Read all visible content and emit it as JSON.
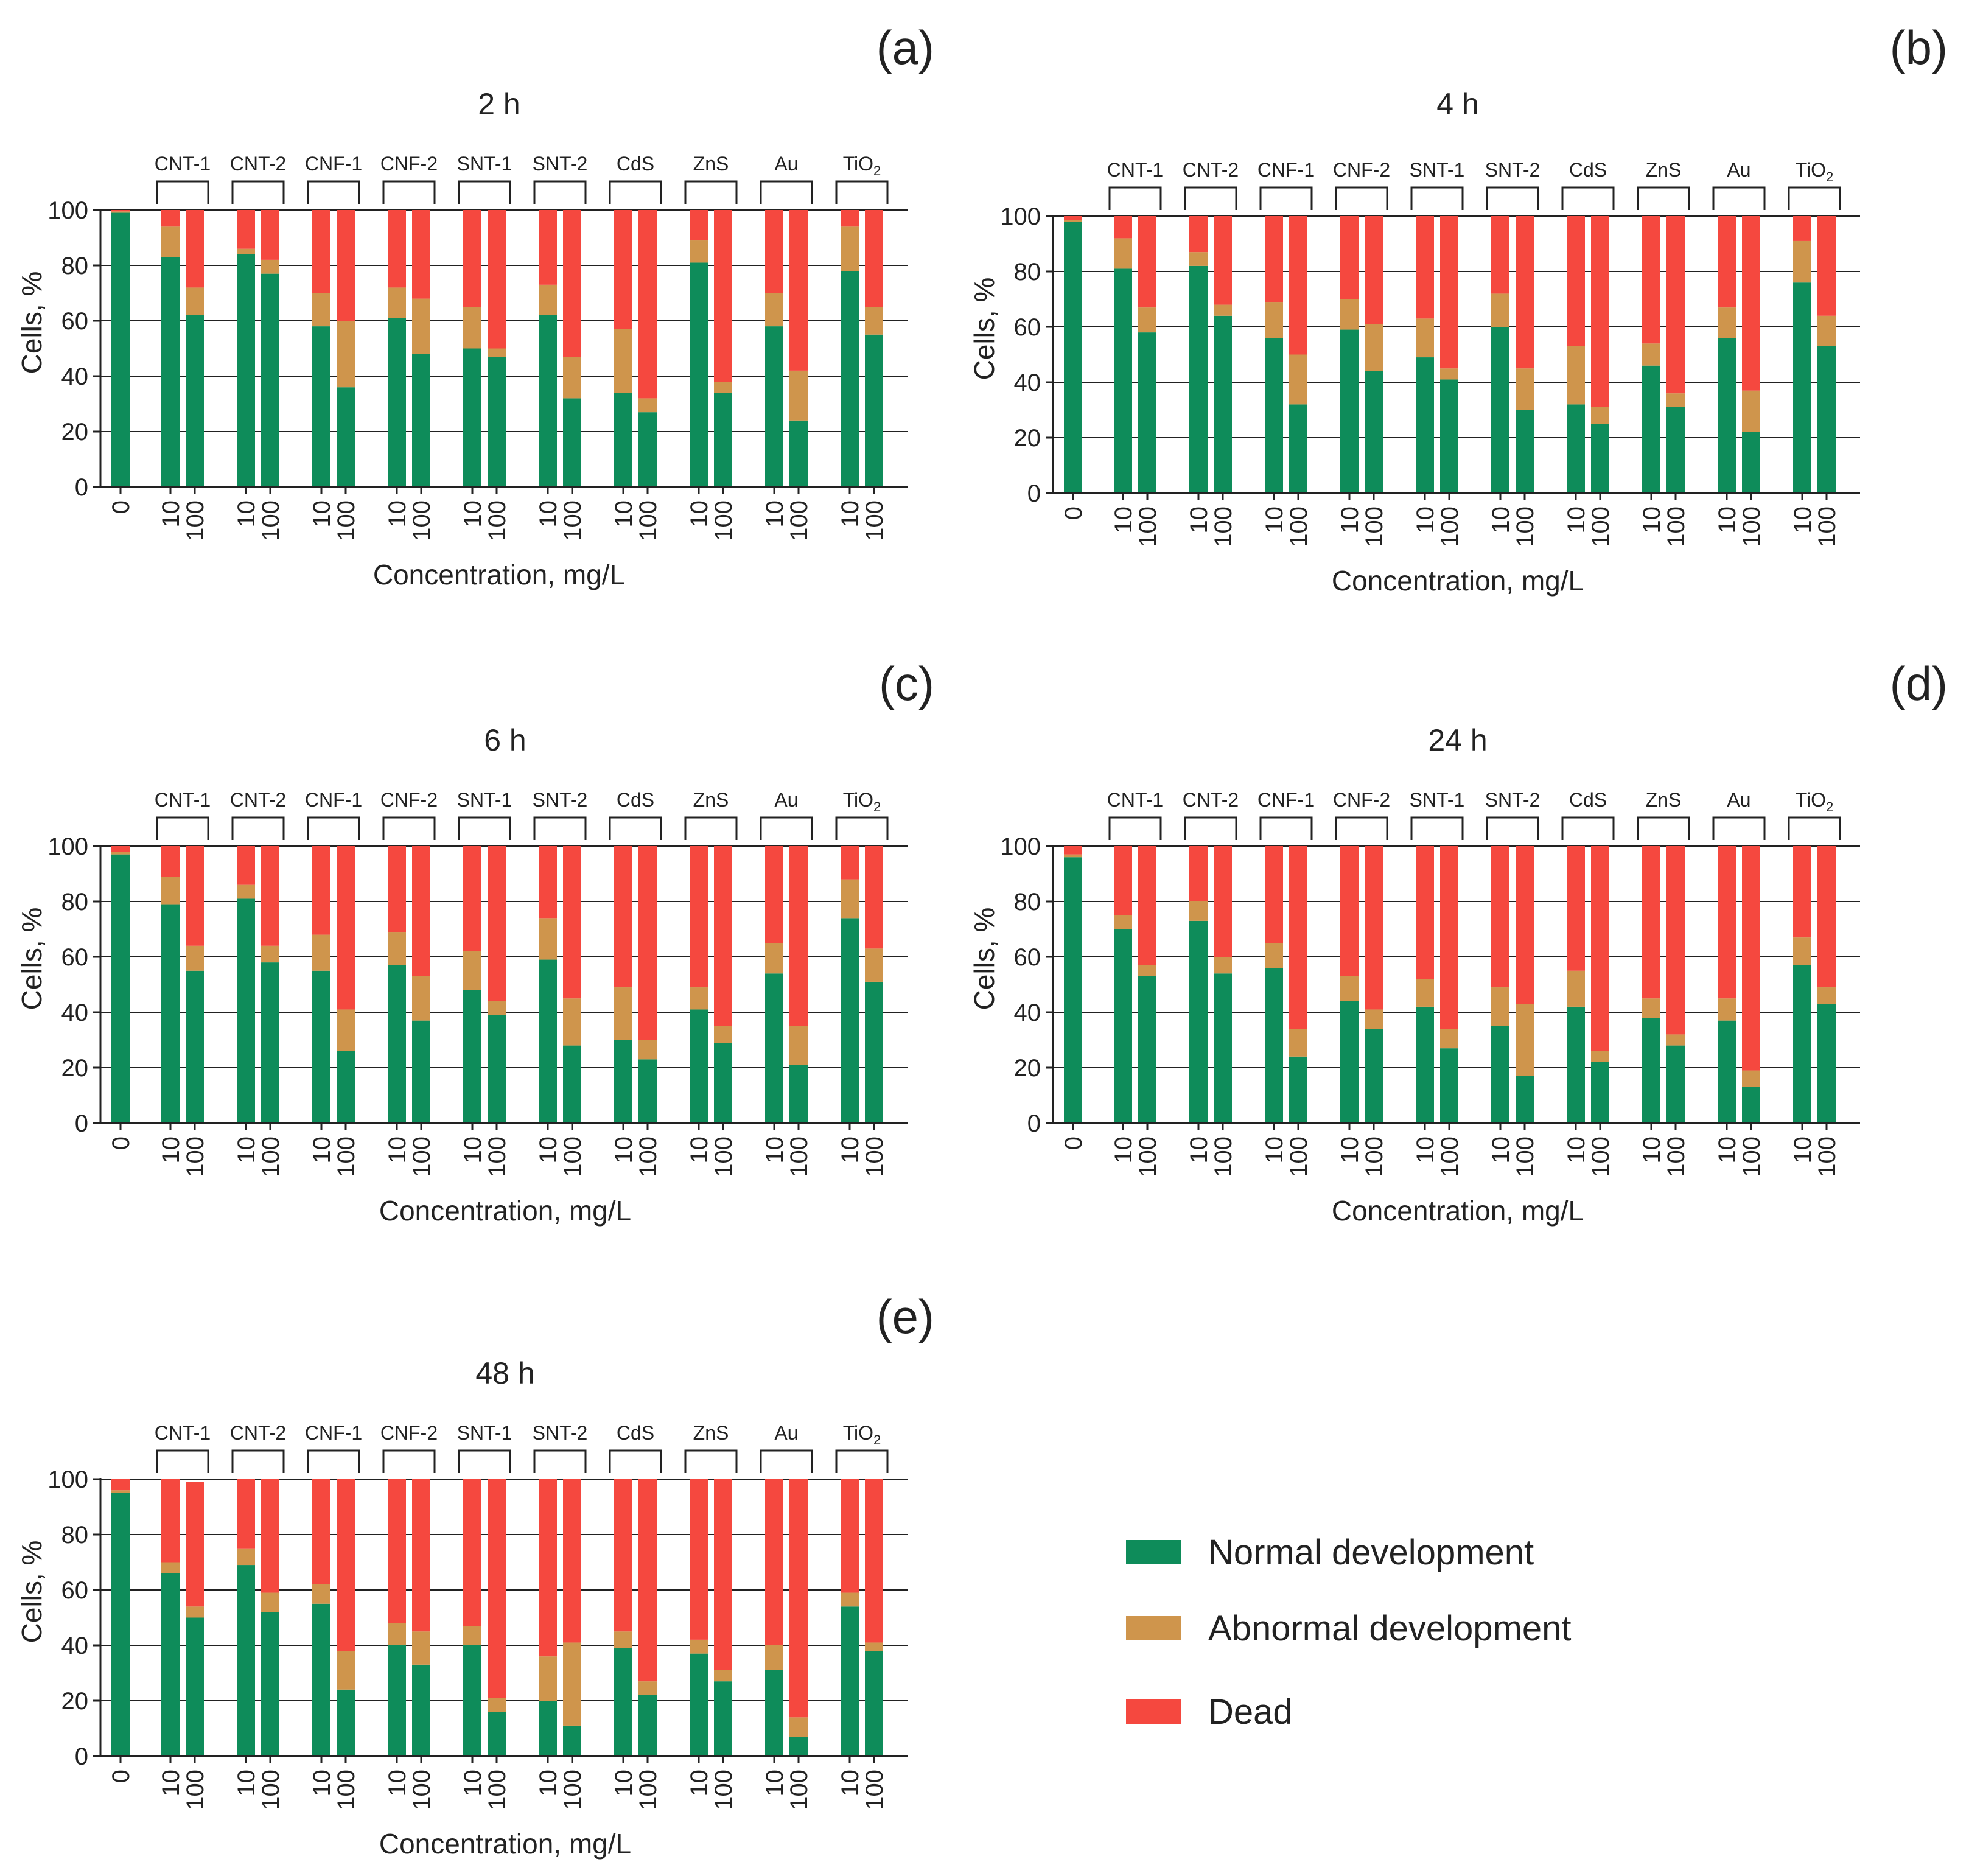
{
  "colors": {
    "normal": "#0e8c5a",
    "abnormal": "#cf954c",
    "dead": "#f5483f"
  },
  "legend": [
    {
      "key": "normal",
      "label": "Normal development"
    },
    {
      "key": "abnormal",
      "label": "Abnormal development"
    },
    {
      "key": "dead",
      "label": "Dead"
    }
  ],
  "chart_data": [
    {
      "type": "bar",
      "stacked": true,
      "panel": "(a)",
      "title": "2 h",
      "xlabel": "Concentration, mg/L",
      "ylabel": "Cells, %",
      "ylim": [
        0,
        100
      ],
      "yticks": [
        "0",
        "20",
        "40",
        "60",
        "80",
        "100"
      ],
      "groups": [
        "CNT-1",
        "CNT-2",
        "CNF-1",
        "CNF-2",
        "SNT-1",
        "SNT-2",
        "CdS",
        "ZnS",
        "Au",
        "TiO2"
      ],
      "categories": [
        "0",
        "10",
        "100"
      ],
      "control": {
        "label": "0",
        "normal": 99,
        "abnormal": 0.5,
        "dead": 0.5
      },
      "bars": [
        [
          {
            "label": "10",
            "normal": 83,
            "abnormal": 11,
            "dead": 6
          },
          {
            "label": "100",
            "normal": 62,
            "abnormal": 10,
            "dead": 28
          }
        ],
        [
          {
            "label": "10",
            "normal": 84,
            "abnormal": 2,
            "dead": 14
          },
          {
            "label": "100",
            "normal": 77,
            "abnormal": 5,
            "dead": 18
          }
        ],
        [
          {
            "label": "10",
            "normal": 58,
            "abnormal": 12,
            "dead": 30
          },
          {
            "label": "100",
            "normal": 36,
            "abnormal": 24,
            "dead": 40
          }
        ],
        [
          {
            "label": "10",
            "normal": 61,
            "abnormal": 11,
            "dead": 28
          },
          {
            "label": "100",
            "normal": 48,
            "abnormal": 20,
            "dead": 32
          }
        ],
        [
          {
            "label": "10",
            "normal": 50,
            "abnormal": 15,
            "dead": 35
          },
          {
            "label": "100",
            "normal": 47,
            "abnormal": 3,
            "dead": 50
          }
        ],
        [
          {
            "label": "10",
            "normal": 62,
            "abnormal": 11,
            "dead": 27
          },
          {
            "label": "100",
            "normal": 32,
            "abnormal": 15,
            "dead": 53
          }
        ],
        [
          {
            "label": "10",
            "normal": 34,
            "abnormal": 23,
            "dead": 43
          },
          {
            "label": "100",
            "normal": 27,
            "abnormal": 5,
            "dead": 68
          }
        ],
        [
          {
            "label": "10",
            "normal": 81,
            "abnormal": 8,
            "dead": 11
          },
          {
            "label": "100",
            "normal": 34,
            "abnormal": 4,
            "dead": 62
          }
        ],
        [
          {
            "label": "10",
            "normal": 58,
            "abnormal": 12,
            "dead": 30
          },
          {
            "label": "100",
            "normal": 24,
            "abnormal": 18,
            "dead": 58
          }
        ],
        [
          {
            "label": "10",
            "normal": 78,
            "abnormal": 16,
            "dead": 6
          },
          {
            "label": "100",
            "normal": 55,
            "abnormal": 10,
            "dead": 35
          }
        ]
      ]
    },
    {
      "type": "bar",
      "stacked": true,
      "panel": "(b)",
      "title": "4 h",
      "xlabel": "Concentration, mg/L",
      "ylabel": "Cells, %",
      "ylim": [
        0,
        100
      ],
      "yticks": [
        "0",
        "20",
        "40",
        "60",
        "80",
        "100"
      ],
      "groups": [
        "CNT-1",
        "CNT-2",
        "CNF-1",
        "CNF-2",
        "SNT-1",
        "SNT-2",
        "CdS",
        "ZnS",
        "Au",
        "TiO2"
      ],
      "categories": [
        "0",
        "10",
        "100"
      ],
      "control": {
        "label": "0",
        "normal": 98,
        "abnormal": 0.5,
        "dead": 1.5
      },
      "bars": [
        [
          {
            "label": "10",
            "normal": 81,
            "abnormal": 11,
            "dead": 8
          },
          {
            "label": "100",
            "normal": 58,
            "abnormal": 9,
            "dead": 33
          }
        ],
        [
          {
            "label": "10",
            "normal": 82,
            "abnormal": 5,
            "dead": 13
          },
          {
            "label": "100",
            "normal": 64,
            "abnormal": 4,
            "dead": 32
          }
        ],
        [
          {
            "label": "10",
            "normal": 56,
            "abnormal": 13,
            "dead": 31
          },
          {
            "label": "100",
            "normal": 32,
            "abnormal": 18,
            "dead": 50
          }
        ],
        [
          {
            "label": "10",
            "normal": 59,
            "abnormal": 11,
            "dead": 30
          },
          {
            "label": "100",
            "normal": 44,
            "abnormal": 17,
            "dead": 39
          }
        ],
        [
          {
            "label": "10",
            "normal": 49,
            "abnormal": 14,
            "dead": 37
          },
          {
            "label": "100",
            "normal": 41,
            "abnormal": 4,
            "dead": 55
          }
        ],
        [
          {
            "label": "10",
            "normal": 60,
            "abnormal": 12,
            "dead": 28
          },
          {
            "label": "100",
            "normal": 30,
            "abnormal": 15,
            "dead": 55
          }
        ],
        [
          {
            "label": "10",
            "normal": 32,
            "abnormal": 21,
            "dead": 47
          },
          {
            "label": "100",
            "normal": 25,
            "abnormal": 6,
            "dead": 69
          }
        ],
        [
          {
            "label": "10",
            "normal": 46,
            "abnormal": 8,
            "dead": 46
          },
          {
            "label": "100",
            "normal": 31,
            "abnormal": 5,
            "dead": 64
          }
        ],
        [
          {
            "label": "10",
            "normal": 56,
            "abnormal": 11,
            "dead": 33
          },
          {
            "label": "100",
            "normal": 22,
            "abnormal": 15,
            "dead": 63
          }
        ],
        [
          {
            "label": "10",
            "normal": 76,
            "abnormal": 15,
            "dead": 9
          },
          {
            "label": "100",
            "normal": 53,
            "abnormal": 11,
            "dead": 36
          }
        ]
      ]
    },
    {
      "type": "bar",
      "stacked": true,
      "panel": "(c)",
      "title": "6 h",
      "xlabel": "Concentration, mg/L",
      "ylabel": "Cells, %",
      "ylim": [
        0,
        100
      ],
      "yticks": [
        "0",
        "20",
        "40",
        "60",
        "80",
        "100"
      ],
      "groups": [
        "CNT-1",
        "CNT-2",
        "CNF-1",
        "CNF-2",
        "SNT-1",
        "SNT-2",
        "CdS",
        "ZnS",
        "Au",
        "TiO2"
      ],
      "categories": [
        "0",
        "10",
        "100"
      ],
      "control": {
        "label": "0",
        "normal": 97,
        "abnormal": 1,
        "dead": 2
      },
      "bars": [
        [
          {
            "label": "10",
            "normal": 79,
            "abnormal": 10,
            "dead": 11
          },
          {
            "label": "100",
            "normal": 55,
            "abnormal": 9,
            "dead": 36
          }
        ],
        [
          {
            "label": "10",
            "normal": 81,
            "abnormal": 5,
            "dead": 14
          },
          {
            "label": "100",
            "normal": 58,
            "abnormal": 6,
            "dead": 36
          }
        ],
        [
          {
            "label": "10",
            "normal": 55,
            "abnormal": 13,
            "dead": 32
          },
          {
            "label": "100",
            "normal": 26,
            "abnormal": 15,
            "dead": 59
          }
        ],
        [
          {
            "label": "10",
            "normal": 57,
            "abnormal": 12,
            "dead": 31
          },
          {
            "label": "100",
            "normal": 37,
            "abnormal": 16,
            "dead": 47
          }
        ],
        [
          {
            "label": "10",
            "normal": 48,
            "abnormal": 14,
            "dead": 38
          },
          {
            "label": "100",
            "normal": 39,
            "abnormal": 5,
            "dead": 56
          }
        ],
        [
          {
            "label": "10",
            "normal": 59,
            "abnormal": 15,
            "dead": 26
          },
          {
            "label": "100",
            "normal": 28,
            "abnormal": 17,
            "dead": 55
          }
        ],
        [
          {
            "label": "10",
            "normal": 30,
            "abnormal": 19,
            "dead": 51
          },
          {
            "label": "100",
            "normal": 23,
            "abnormal": 7,
            "dead": 70
          }
        ],
        [
          {
            "label": "10",
            "normal": 41,
            "abnormal": 8,
            "dead": 51
          },
          {
            "label": "100",
            "normal": 29,
            "abnormal": 6,
            "dead": 65
          }
        ],
        [
          {
            "label": "10",
            "normal": 54,
            "abnormal": 11,
            "dead": 35
          },
          {
            "label": "100",
            "normal": 21,
            "abnormal": 14,
            "dead": 65
          }
        ],
        [
          {
            "label": "10",
            "normal": 74,
            "abnormal": 14,
            "dead": 12
          },
          {
            "label": "100",
            "normal": 51,
            "abnormal": 12,
            "dead": 37
          }
        ]
      ]
    },
    {
      "type": "bar",
      "stacked": true,
      "panel": "(d)",
      "title": "24 h",
      "xlabel": "Concentration, mg/L",
      "ylabel": "Cells, %",
      "ylim": [
        0,
        100
      ],
      "yticks": [
        "0",
        "20",
        "40",
        "60",
        "80",
        "100"
      ],
      "groups": [
        "CNT-1",
        "CNT-2",
        "CNF-1",
        "CNF-2",
        "SNT-1",
        "SNT-2",
        "CdS",
        "ZnS",
        "Au",
        "TiO2"
      ],
      "categories": [
        "0",
        "10",
        "100"
      ],
      "control": {
        "label": "0",
        "normal": 96,
        "abnormal": 1,
        "dead": 3
      },
      "bars": [
        [
          {
            "label": "10",
            "normal": 70,
            "abnormal": 5,
            "dead": 25
          },
          {
            "label": "100",
            "normal": 53,
            "abnormal": 4,
            "dead": 43
          }
        ],
        [
          {
            "label": "10",
            "normal": 73,
            "abnormal": 7,
            "dead": 20
          },
          {
            "label": "100",
            "normal": 54,
            "abnormal": 6,
            "dead": 40
          }
        ],
        [
          {
            "label": "10",
            "normal": 56,
            "abnormal": 9,
            "dead": 35
          },
          {
            "label": "100",
            "normal": 24,
            "abnormal": 10,
            "dead": 66
          }
        ],
        [
          {
            "label": "10",
            "normal": 44,
            "abnormal": 9,
            "dead": 47
          },
          {
            "label": "100",
            "normal": 34,
            "abnormal": 7,
            "dead": 59
          }
        ],
        [
          {
            "label": "10",
            "normal": 42,
            "abnormal": 10,
            "dead": 48
          },
          {
            "label": "100",
            "normal": 27,
            "abnormal": 7,
            "dead": 66
          }
        ],
        [
          {
            "label": "10",
            "normal": 35,
            "abnormal": 14,
            "dead": 51
          },
          {
            "label": "100",
            "normal": 17,
            "abnormal": 26,
            "dead": 57
          }
        ],
        [
          {
            "label": "10",
            "normal": 42,
            "abnormal": 13,
            "dead": 45
          },
          {
            "label": "100",
            "normal": 22,
            "abnormal": 4,
            "dead": 74
          }
        ],
        [
          {
            "label": "10",
            "normal": 38,
            "abnormal": 7,
            "dead": 55
          },
          {
            "label": "100",
            "normal": 28,
            "abnormal": 4,
            "dead": 68
          }
        ],
        [
          {
            "label": "10",
            "normal": 37,
            "abnormal": 8,
            "dead": 55
          },
          {
            "label": "100",
            "normal": 13,
            "abnormal": 6,
            "dead": 81
          }
        ],
        [
          {
            "label": "10",
            "normal": 57,
            "abnormal": 10,
            "dead": 33
          },
          {
            "label": "100",
            "normal": 43,
            "abnormal": 6,
            "dead": 51
          }
        ]
      ]
    },
    {
      "type": "bar",
      "stacked": true,
      "panel": "(e)",
      "title": "48 h",
      "xlabel": "Concentration, mg/L",
      "ylabel": "Cells, %",
      "ylim": [
        0,
        100
      ],
      "yticks": [
        "0",
        "20",
        "40",
        "60",
        "80",
        "100"
      ],
      "groups": [
        "CNT-1",
        "CNT-2",
        "CNF-1",
        "CNF-2",
        "SNT-1",
        "SNT-2",
        "CdS",
        "ZnS",
        "Au",
        "TiO2"
      ],
      "categories": [
        "0",
        "10",
        "100"
      ],
      "control": {
        "label": "0",
        "normal": 95,
        "abnormal": 1,
        "dead": 4
      },
      "bars": [
        [
          {
            "label": "10",
            "normal": 66,
            "abnormal": 4,
            "dead": 30
          },
          {
            "label": "100",
            "normal": 50,
            "abnormal": 4,
            "dead": 45
          }
        ],
        [
          {
            "label": "10",
            "normal": 69,
            "abnormal": 6,
            "dead": 25
          },
          {
            "label": "100",
            "normal": 52,
            "abnormal": 7,
            "dead": 41
          }
        ],
        [
          {
            "label": "10",
            "normal": 55,
            "abnormal": 7,
            "dead": 38
          },
          {
            "label": "100",
            "normal": 24,
            "abnormal": 14,
            "dead": 62
          }
        ],
        [
          {
            "label": "10",
            "normal": 40,
            "abnormal": 8,
            "dead": 52
          },
          {
            "label": "100",
            "normal": 33,
            "abnormal": 12,
            "dead": 55
          }
        ],
        [
          {
            "label": "10",
            "normal": 40,
            "abnormal": 7,
            "dead": 53
          },
          {
            "label": "100",
            "normal": 16,
            "abnormal": 5,
            "dead": 79
          }
        ],
        [
          {
            "label": "10",
            "normal": 20,
            "abnormal": 16,
            "dead": 64
          },
          {
            "label": "100",
            "normal": 11,
            "abnormal": 30,
            "dead": 59
          }
        ],
        [
          {
            "label": "10",
            "normal": 39,
            "abnormal": 6,
            "dead": 55
          },
          {
            "label": "100",
            "normal": 22,
            "abnormal": 5,
            "dead": 73
          }
        ],
        [
          {
            "label": "10",
            "normal": 37,
            "abnormal": 5,
            "dead": 58
          },
          {
            "label": "100",
            "normal": 27,
            "abnormal": 4,
            "dead": 69
          }
        ],
        [
          {
            "label": "10",
            "normal": 31,
            "abnormal": 9,
            "dead": 60
          },
          {
            "label": "100",
            "normal": 7,
            "abnormal": 7,
            "dead": 86
          }
        ],
        [
          {
            "label": "10",
            "normal": 54,
            "abnormal": 5,
            "dead": 41
          },
          {
            "label": "100",
            "normal": 38,
            "abnormal": 3,
            "dead": 59
          }
        ]
      ]
    }
  ]
}
